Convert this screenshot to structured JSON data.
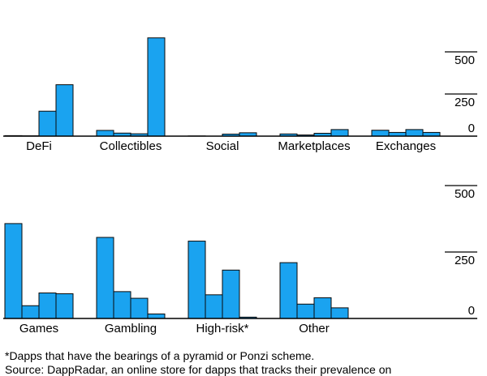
{
  "chart_data": [
    {
      "type": "bar",
      "ylim": [
        0,
        500
      ],
      "yticks": [
        0,
        250,
        500
      ],
      "categories": [
        "DeFi",
        "Collectibles",
        "Social",
        "Marketplaces",
        "Exchanges"
      ],
      "values": [
        [
          3,
          2,
          148,
          305
        ],
        [
          34,
          18,
          14,
          583
        ],
        [
          1,
          0,
          12,
          20
        ],
        [
          13,
          7,
          17,
          39
        ],
        [
          35,
          22,
          39,
          22
        ]
      ]
    },
    {
      "type": "bar",
      "ylim": [
        0,
        500
      ],
      "yticks": [
        0,
        250,
        500
      ],
      "categories": [
        "Games",
        "Gambling",
        "High-risk*",
        "Other"
      ],
      "values": [
        [
          357,
          48,
          96,
          93
        ],
        [
          305,
          101,
          76,
          17
        ],
        [
          291,
          89,
          182,
          5
        ],
        [
          210,
          54,
          78,
          40
        ]
      ]
    }
  ],
  "footnote": "*Dapps that have the bearings of a pyramid or Ponzi scheme.",
  "source": "Source: DappRadar, an online store for dapps that tracks their prevalence on"
}
